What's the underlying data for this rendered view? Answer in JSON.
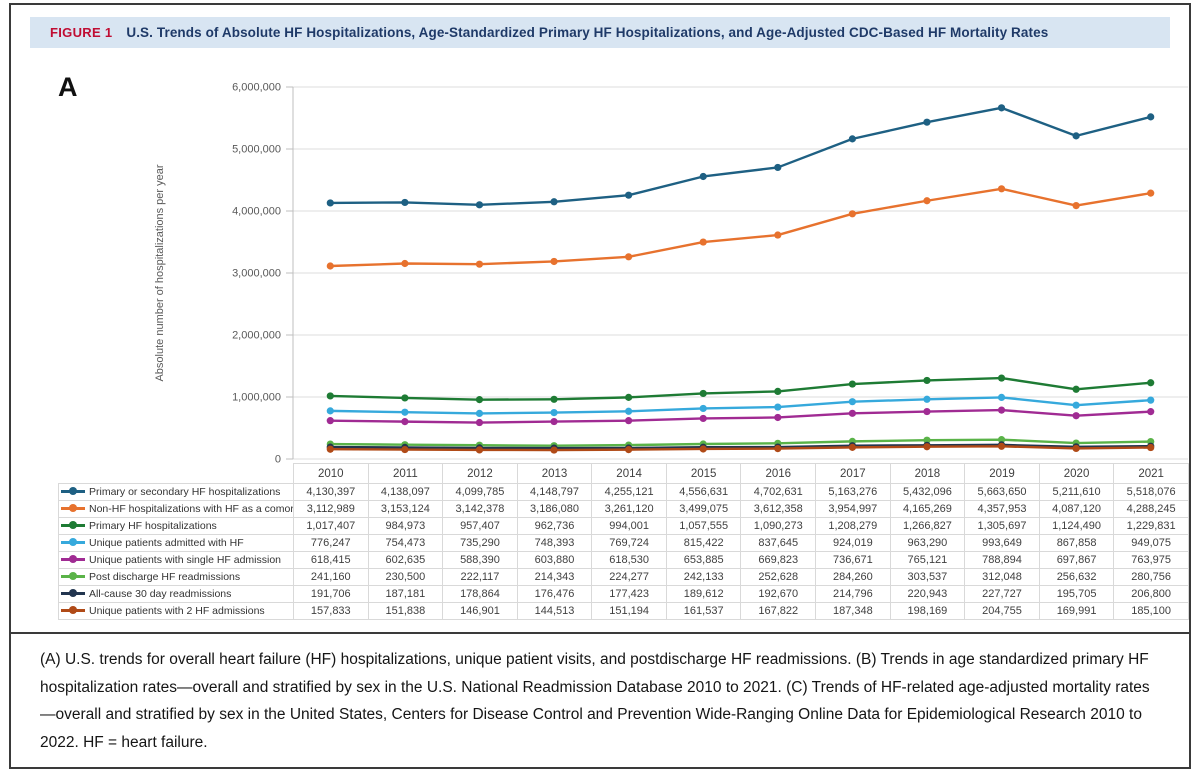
{
  "figure": {
    "label": "FIGURE 1",
    "title": "U.S. Trends of Absolute HF Hospitalizations, Age-Standardized Primary HF Hospitalizations, and Age-Adjusted CDC-Based HF Mortality Rates",
    "panel_label": "A"
  },
  "caption": {
    "text": "(A) U.S. trends for overall heart failure (HF) hospitalizations, unique patient visits, and postdischarge HF readmissions. (B) Trends in age standardized primary HF hospitalization rates—overall and stratified by sex in the U.S. National Readmission Database 2010 to 2021. (C) Trends of HF-related age-adjusted mortality rates—overall and stratified by sex in the United States, Centers for Disease Control and Prevention Wide-Ranging Online Data for Epidemiological Research 2010 to 2022. HF = heart failure."
  },
  "colors": {
    "title_bar_bg": "#d8e5f2",
    "figure_label_red": "#c00d33",
    "title_navy": "#1f3a68",
    "grid": "#dcdcdc",
    "axis": "#bfbfbf",
    "tick_text": "#595959",
    "frame_border": "#3a3a3a"
  },
  "chart_data": {
    "type": "line",
    "title": "",
    "xlabel": "",
    "ylabel": "Absolute number of hospitalizations per year",
    "ylim": [
      0,
      6000000
    ],
    "yticks": [
      0,
      1000000,
      2000000,
      3000000,
      4000000,
      5000000,
      6000000
    ],
    "grid": true,
    "legend_position": "table-left",
    "categories": [
      "2010",
      "2011",
      "2012",
      "2013",
      "2014",
      "2015",
      "2016",
      "2017",
      "2018",
      "2019",
      "2020",
      "2021"
    ],
    "series": [
      {
        "name": "Primary or secondary HF hospitalizations",
        "color": "#1e6083",
        "values": [
          4130397,
          4138097,
          4099785,
          4148797,
          4255121,
          4556631,
          4702631,
          5163276,
          5432096,
          5663650,
          5211610,
          5518076
        ]
      },
      {
        "name": "Non-HF hospitalizations with HF as a comorbidity",
        "color": "#e7722e",
        "values": [
          3112989,
          3153124,
          3142378,
          3186080,
          3261120,
          3499075,
          3612358,
          3954997,
          4165269,
          4357953,
          4087120,
          4288245
        ]
      },
      {
        "name": "Primary HF hospitalizations",
        "color": "#1e7b34",
        "values": [
          1017407,
          984973,
          957407,
          962736,
          994001,
          1057555,
          1090273,
          1208279,
          1266827,
          1305697,
          1124490,
          1229831
        ]
      },
      {
        "name": "Unique patients admitted with HF",
        "color": "#36a9dc",
        "values": [
          776247,
          754473,
          735290,
          748393,
          769724,
          815422,
          837645,
          924019,
          963290,
          993649,
          867858,
          949075
        ]
      },
      {
        "name": "Unique patients with single HF admission",
        "color": "#a02b93",
        "values": [
          618415,
          602635,
          588390,
          603880,
          618530,
          653885,
          669823,
          736671,
          765121,
          788894,
          697867,
          763975
        ]
      },
      {
        "name": "Post discharge HF readmissions",
        "color": "#5ab348",
        "values": [
          241160,
          230500,
          222117,
          214343,
          224277,
          242133,
          252628,
          284260,
          303537,
          312048,
          256632,
          280756
        ]
      },
      {
        "name": "All-cause 30 day readmissions",
        "color": "#22354f",
        "values": [
          191706,
          187181,
          178864,
          176476,
          177423,
          189612,
          192670,
          214796,
          220943,
          227727,
          195705,
          206800
        ]
      },
      {
        "name": "Unique patients with 2 HF admissions",
        "color": "#b04a17",
        "values": [
          157833,
          151838,
          146901,
          144513,
          151194,
          161537,
          167822,
          187348,
          198169,
          204755,
          169991,
          185100
        ]
      }
    ]
  }
}
